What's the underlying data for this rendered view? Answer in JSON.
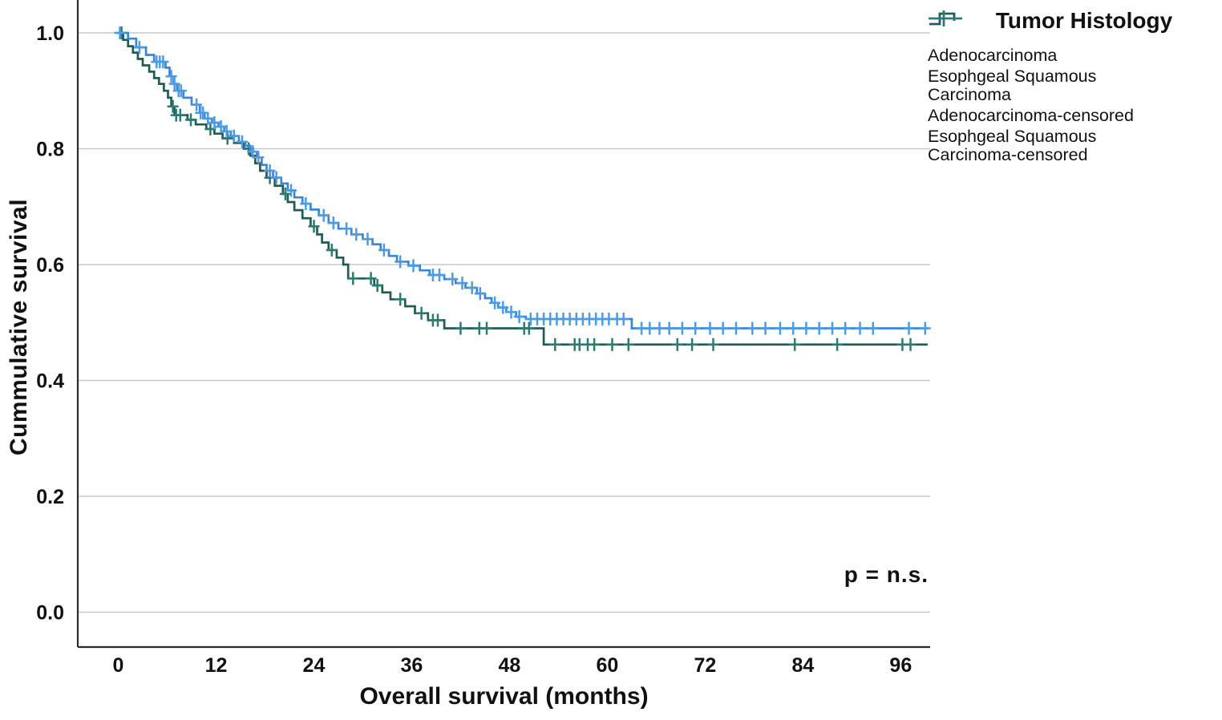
{
  "legend": {
    "title": "Tumor Histology",
    "items": [
      {
        "label": "Adenocarcinoma",
        "swatch": "step-line",
        "series": "adeno"
      },
      {
        "label": "Esophgeal Squamous Carcinoma",
        "swatch": "step-line",
        "series": "escc"
      },
      {
        "label": "Adenocarcinoma-censored",
        "swatch": "censor-plus",
        "series": "adeno"
      },
      {
        "label": "Esophgeal Squamous Carcinoma-censored",
        "swatch": "censor-plus",
        "series": "escc"
      }
    ]
  },
  "annotation": {
    "p_value": "p = n.s."
  },
  "chart_data": {
    "type": "line",
    "subtype": "kaplan-meier-step",
    "title": "",
    "xlabel": "Overall survival (months)",
    "ylabel": "Cummulative survival",
    "x_ticks": [
      0,
      12,
      24,
      36,
      48,
      60,
      72,
      84,
      96
    ],
    "y_ticks": [
      "0.0",
      "0.2",
      "0.4",
      "0.6",
      "0.8",
      "1.0"
    ],
    "xlim": [
      -5,
      99.5
    ],
    "ylim": [
      0.0,
      1.0
    ],
    "x_end": 99.3,
    "grid": "horizontal",
    "legend_position": "top-right",
    "colors": {
      "grid": "#c9c9c9",
      "axis": "#2a2a2a",
      "adeno_line": "#3a85d4",
      "adeno_censor": "#4f9be0",
      "escc_line": "#215b52",
      "escc_censor": "#2d7a70"
    },
    "series": [
      {
        "id": "adeno",
        "name": "Adenocarcinoma",
        "color": "#3a85d4",
        "censor_color": "#4f9be0",
        "steps": [
          [
            0,
            1.0
          ],
          [
            1.2,
            0.99
          ],
          [
            2.2,
            0.975
          ],
          [
            3.4,
            0.962
          ],
          [
            4.4,
            0.95
          ],
          [
            5.8,
            0.94
          ],
          [
            6.3,
            0.925
          ],
          [
            6.8,
            0.912
          ],
          [
            7.2,
            0.9
          ],
          [
            8.0,
            0.888
          ],
          [
            9.0,
            0.876
          ],
          [
            10.0,
            0.862
          ],
          [
            10.6,
            0.852
          ],
          [
            11.5,
            0.845
          ],
          [
            12.3,
            0.838
          ],
          [
            13.0,
            0.83
          ],
          [
            13.8,
            0.822
          ],
          [
            14.8,
            0.812
          ],
          [
            15.6,
            0.805
          ],
          [
            16.2,
            0.795
          ],
          [
            17.0,
            0.785
          ],
          [
            17.6,
            0.772
          ],
          [
            18.2,
            0.762
          ],
          [
            19.0,
            0.75
          ],
          [
            20.0,
            0.74
          ],
          [
            20.8,
            0.728
          ],
          [
            21.6,
            0.716
          ],
          [
            22.6,
            0.705
          ],
          [
            23.6,
            0.695
          ],
          [
            24.6,
            0.685
          ],
          [
            25.8,
            0.672
          ],
          [
            27.0,
            0.662
          ],
          [
            28.6,
            0.652
          ],
          [
            30.0,
            0.644
          ],
          [
            31.2,
            0.635
          ],
          [
            32.2,
            0.625
          ],
          [
            33.2,
            0.615
          ],
          [
            34.2,
            0.605
          ],
          [
            35.6,
            0.598
          ],
          [
            37.0,
            0.59
          ],
          [
            38.2,
            0.582
          ],
          [
            40.0,
            0.575
          ],
          [
            41.4,
            0.568
          ],
          [
            42.6,
            0.56
          ],
          [
            44.0,
            0.55
          ],
          [
            45.0,
            0.542
          ],
          [
            45.8,
            0.534
          ],
          [
            46.6,
            0.526
          ],
          [
            47.6,
            0.518
          ],
          [
            48.8,
            0.51
          ],
          [
            50.0,
            0.506
          ],
          [
            63.0,
            0.49
          ]
        ],
        "censor_times": [
          0.2,
          2.6,
          4.7,
          5.1,
          5.5,
          6.5,
          6.9,
          7.4,
          7.7,
          9.6,
          10.1,
          10.4,
          11.0,
          11.8,
          12.6,
          13.3,
          14.2,
          15.2,
          16.5,
          17.2,
          18.6,
          19.4,
          21.2,
          23.0,
          25.2,
          26.4,
          28.0,
          29.2,
          30.6,
          32.6,
          34.6,
          36.2,
          38.6,
          39.4,
          41.0,
          42.2,
          43.4,
          44.4,
          46.2,
          47.2,
          48.2,
          49.2,
          50.6,
          51.4,
          52.2,
          53.0,
          53.8,
          54.6,
          55.4,
          56.2,
          57.0,
          57.8,
          58.6,
          59.4,
          60.2,
          61.2,
          62.0,
          64.2,
          65.2,
          66.4,
          67.6,
          69.2,
          70.8,
          72.6,
          74.2,
          75.8,
          77.8,
          79.4,
          81.2,
          82.8,
          84.4,
          86.0,
          87.6,
          89.2,
          91.0,
          92.6,
          97.0,
          99.0
        ]
      },
      {
        "id": "escc",
        "name": "Esophgeal Squamous Carcinoma",
        "color": "#215b52",
        "censor_color": "#2d7a70",
        "steps": [
          [
            0,
            1.0
          ],
          [
            0.6,
            0.988
          ],
          [
            1.2,
            0.977
          ],
          [
            1.8,
            0.966
          ],
          [
            2.4,
            0.955
          ],
          [
            3.0,
            0.944
          ],
          [
            3.8,
            0.933
          ],
          [
            4.4,
            0.922
          ],
          [
            5.0,
            0.912
          ],
          [
            5.6,
            0.9
          ],
          [
            6.1,
            0.888
          ],
          [
            6.5,
            0.873
          ],
          [
            6.9,
            0.858
          ],
          [
            8.5,
            0.85
          ],
          [
            9.5,
            0.842
          ],
          [
            10.8,
            0.834
          ],
          [
            11.8,
            0.826
          ],
          [
            12.8,
            0.818
          ],
          [
            14.2,
            0.81
          ],
          [
            15.4,
            0.8
          ],
          [
            16.2,
            0.788
          ],
          [
            16.8,
            0.775
          ],
          [
            17.4,
            0.762
          ],
          [
            18.2,
            0.75
          ],
          [
            19.2,
            0.736
          ],
          [
            20.2,
            0.722
          ],
          [
            20.8,
            0.708
          ],
          [
            21.6,
            0.694
          ],
          [
            22.6,
            0.68
          ],
          [
            23.6,
            0.666
          ],
          [
            24.4,
            0.652
          ],
          [
            25.0,
            0.638
          ],
          [
            25.8,
            0.625
          ],
          [
            26.8,
            0.612
          ],
          [
            27.6,
            0.6
          ],
          [
            28.2,
            0.576
          ],
          [
            31.4,
            0.564
          ],
          [
            32.4,
            0.552
          ],
          [
            33.4,
            0.54
          ],
          [
            35.2,
            0.528
          ],
          [
            36.4,
            0.516
          ],
          [
            38.0,
            0.504
          ],
          [
            40.0,
            0.49
          ],
          [
            52.2,
            0.462
          ]
        ],
        "censor_times": [
          0.4,
          6.7,
          7.1,
          7.6,
          8.9,
          11.3,
          13.4,
          16.0,
          18.6,
          20.5,
          24.0,
          26.2,
          28.8,
          31.0,
          31.8,
          34.6,
          37.2,
          38.6,
          39.2,
          42.0,
          44.3,
          45.2,
          49.8,
          50.4,
          53.6,
          56.0,
          56.6,
          57.6,
          58.4,
          60.6,
          62.6,
          68.6,
          70.4,
          73.0,
          83.0,
          88.2,
          96.2,
          97.2
        ]
      }
    ]
  }
}
